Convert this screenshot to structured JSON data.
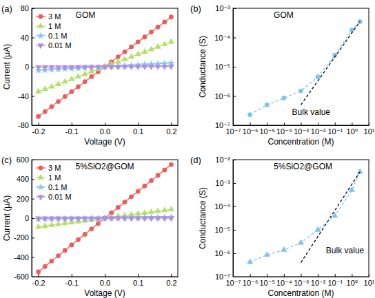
{
  "chart_data": [
    {
      "type": "line",
      "title": "(a)",
      "annotations": [
        {
          "text": "GOM"
        }
      ],
      "xlabel": "Voltage (V)",
      "ylabel": "Current (μA)",
      "x": [
        -0.2,
        -0.18,
        -0.16,
        -0.14,
        -0.12,
        -0.1,
        -0.08,
        -0.06,
        -0.04,
        -0.02,
        0,
        0.02,
        0.04,
        0.06,
        0.08,
        0.1,
        0.12,
        0.14,
        0.16,
        0.18,
        0.2
      ],
      "series": [
        {
          "name": "3 M",
          "color": "#f25a5a",
          "marker": "circle",
          "line_style": "solid",
          "values": [
            -68,
            -61.2,
            -54.4,
            -47.6,
            -40.8,
            -34,
            -27.2,
            -20.4,
            -13.6,
            -6.8,
            0,
            6.8,
            13.6,
            20.4,
            27.2,
            34,
            40.8,
            47.6,
            54.4,
            61.2,
            68
          ]
        },
        {
          "name": "1 M",
          "color": "#b5df6a",
          "marker": "triangle-up",
          "line_style": "solid",
          "values": [
            -34,
            -30.6,
            -27.2,
            -23.8,
            -20.4,
            -17,
            -13.6,
            -10.2,
            -6.8,
            -3.4,
            0,
            3.4,
            6.8,
            10.2,
            13.6,
            17,
            20.4,
            23.8,
            27.2,
            30.6,
            34
          ]
        },
        {
          "name": "0.1 M",
          "color": "#86c6e8",
          "marker": "star",
          "line_style": "solid",
          "values": [
            -5,
            -4.5,
            -4,
            -3.5,
            -3,
            -2.5,
            -2,
            -1.5,
            -1,
            -0.5,
            0,
            0.5,
            1,
            1.5,
            2,
            2.5,
            3,
            3.5,
            4,
            4.5,
            5
          ]
        },
        {
          "name": "0.01 M",
          "color": "#b08ce6",
          "marker": "triangle-down",
          "line_style": "solid",
          "values": [
            -0.5,
            -0.45,
            -0.4,
            -0.35,
            -0.3,
            -0.25,
            -0.2,
            -0.15,
            -0.1,
            -0.05,
            0,
            0.05,
            0.1,
            0.15,
            0.2,
            0.25,
            0.3,
            0.35,
            0.4,
            0.45,
            0.5
          ]
        }
      ],
      "xlim": [
        -0.22,
        0.22
      ],
      "xticks": [
        -0.2,
        -0.1,
        {
          "value": 0,
          "label": "0.0"
        },
        0.1,
        0.2
      ],
      "ylim": [
        -80,
        80
      ],
      "yticks": [
        -80,
        -40,
        0,
        40,
        80
      ],
      "grid": false,
      "legend": "upper left"
    },
    {
      "type": "line",
      "title": "(b)",
      "annotations": [
        {
          "text": "GOM"
        },
        {
          "text": "Bulk value",
          "x": 0.0003,
          "y": 2.2e-07
        }
      ],
      "xlabel": "Concentration (M)",
      "ylabel": "Conductance (S)",
      "x": [
        1e-06,
        1e-05,
        0.0001,
        0.001,
        0.01,
        0.1,
        1,
        3
      ],
      "series": [
        {
          "color": "#7ec4ea",
          "marker": "circle",
          "line_style": "dashed",
          "values": [
            2.3e-07,
            5e-07,
            8.5e-07,
            1.5e-06,
            4.5e-06,
            2.5e-05,
            0.00018,
            0.00035
          ]
        },
        {
          "color": "#000000",
          "marker": "none",
          "line_style": "dashed",
          "x": [
            0.001,
            3
          ],
          "values": [
            5e-07,
            0.00035
          ]
        }
      ],
      "log": true,
      "xlim": [
        1e-07,
        10
      ],
      "xticks": [
        {
          "value": 1e-07,
          "label": "10⁻⁷"
        },
        {
          "value": 1e-06,
          "label": "10⁻⁶"
        },
        {
          "value": 1e-05,
          "label": "10⁻⁵"
        },
        {
          "value": 0.0001,
          "label": "10⁻⁴"
        },
        {
          "value": 0.001,
          "label": "10⁻³"
        },
        {
          "value": 0.01,
          "label": "10⁻²"
        },
        {
          "value": 0.1,
          "label": "10⁻¹"
        },
        {
          "value": 1,
          "label": "10⁰"
        },
        {
          "value": 10,
          "label": "10¹"
        }
      ],
      "ylim": [
        1e-07,
        0.001
      ],
      "yticks": [
        {
          "value": 1e-07,
          "label": "10⁻⁷"
        },
        {
          "value": 1e-06,
          "label": "10⁻⁶"
        },
        {
          "value": 1e-05,
          "label": "10⁻⁵"
        },
        {
          "value": 0.0001,
          "label": "10⁻⁴"
        },
        {
          "value": 0.001,
          "label": "10⁻³"
        }
      ],
      "grid": false
    },
    {
      "type": "line",
      "title": "(c)",
      "annotations": [
        {
          "text": "5%SiO2@GOM"
        }
      ],
      "xlabel": "Voltage (V)",
      "ylabel": "Current (μA)",
      "x": [
        -0.2,
        -0.18,
        -0.16,
        -0.14,
        -0.12,
        -0.1,
        -0.08,
        -0.06,
        -0.04,
        -0.02,
        0,
        0.02,
        0.04,
        0.06,
        0.08,
        0.1,
        0.12,
        0.14,
        0.16,
        0.18,
        0.2
      ],
      "series": [
        {
          "name": "3 M",
          "color": "#f25a5a",
          "marker": "circle",
          "line_style": "solid",
          "values": [
            -550,
            -495,
            -440,
            -385,
            -330,
            -275,
            -220,
            -165,
            -110,
            -55,
            0,
            55,
            110,
            165,
            220,
            275,
            330,
            385,
            440,
            495,
            550
          ]
        },
        {
          "name": "1 M",
          "color": "#b5df6a",
          "marker": "triangle-up",
          "line_style": "solid",
          "values": [
            -90,
            -81,
            -72,
            -63,
            -54,
            -45,
            -36,
            -27,
            -18,
            -9,
            0,
            9,
            18,
            27,
            36,
            45,
            54,
            63,
            72,
            81,
            90
          ]
        },
        {
          "name": "0.1 M",
          "color": "#86c6e8",
          "marker": "star",
          "line_style": "solid",
          "values": [
            -10,
            -9,
            -8,
            -7,
            -6,
            -5,
            -4,
            -3,
            -2,
            -1,
            0,
            1,
            2,
            3,
            4,
            5,
            6,
            7,
            8,
            9,
            10
          ]
        },
        {
          "name": "0.01 M",
          "color": "#b08ce6",
          "marker": "triangle-down",
          "line_style": "solid",
          "values": [
            -1,
            -0.9,
            -0.8,
            -0.7,
            -0.6,
            -0.5,
            -0.4,
            -0.3,
            -0.2,
            -0.1,
            0,
            0.1,
            0.2,
            0.3,
            0.4,
            0.5,
            0.6,
            0.7,
            0.8,
            0.9,
            1
          ]
        }
      ],
      "xlim": [
        -0.22,
        0.22
      ],
      "xticks": [
        -0.2,
        -0.1,
        {
          "value": 0,
          "label": "0.0"
        },
        0.1,
        0.2
      ],
      "ylim": [
        -600,
        600
      ],
      "yticks": [
        -600,
        -400,
        -200,
        0,
        200,
        400,
        600
      ],
      "grid": false,
      "legend": "upper left"
    },
    {
      "type": "line",
      "title": "(d)",
      "annotations": [
        {
          "text": "5%SiO2@GOM"
        },
        {
          "text": "Bulk value",
          "x": 0.03,
          "y": 1e-06
        }
      ],
      "xlabel": "Concentration (M)",
      "ylabel": "Conductance (S)",
      "x": [
        1e-06,
        1e-05,
        0.0001,
        0.001,
        0.01,
        0.1,
        1,
        3
      ],
      "series": [
        {
          "color": "#7ec4ea",
          "marker": "triangle-up",
          "line_style": "dashed",
          "values": [
            4.2e-07,
            8.5e-07,
            1.4e-06,
            2.8e-06,
            1e-05,
            4e-05,
            0.0005,
            0.003
          ]
        },
        {
          "color": "#000000",
          "marker": "none",
          "line_style": "dashed",
          "x": [
            0.001,
            3
          ],
          "values": [
            4e-07,
            0.003
          ]
        }
      ],
      "log": true,
      "xlim": [
        1e-07,
        10
      ],
      "xticks": [
        {
          "value": 1e-07,
          "label": "10⁻⁷"
        },
        {
          "value": 1e-06,
          "label": "10⁻⁶"
        },
        {
          "value": 1e-05,
          "label": "10⁻⁵"
        },
        {
          "value": 0.0001,
          "label": "10⁻⁴"
        },
        {
          "value": 0.001,
          "label": "10⁻³"
        },
        {
          "value": 0.01,
          "label": "10⁻²"
        },
        {
          "value": 0.1,
          "label": "10⁻¹"
        },
        {
          "value": 1,
          "label": "10⁰"
        },
        {
          "value": 10,
          "label": "10¹"
        }
      ],
      "ylim": [
        1e-07,
        0.01
      ],
      "yticks": [
        {
          "value": 1e-07,
          "label": "10⁻⁷"
        },
        {
          "value": 1e-06,
          "label": "10⁻⁶"
        },
        {
          "value": 1e-05,
          "label": "10⁻⁵"
        },
        {
          "value": 0.0001,
          "label": "10⁻⁴"
        },
        {
          "value": 0.001,
          "label": "10⁻³"
        },
        {
          "value": 0.01,
          "label": "10⁻²"
        }
      ],
      "grid": false
    }
  ]
}
